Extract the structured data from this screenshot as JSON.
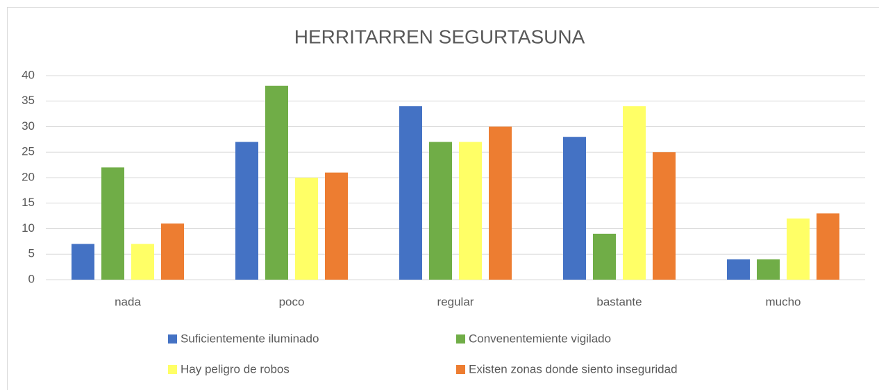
{
  "chart_data": {
    "type": "bar",
    "title": "HERRITARREN SEGURTASUNA",
    "categories": [
      "nada",
      "poco",
      "regular",
      "bastante",
      "mucho"
    ],
    "series": [
      {
        "name": "Suficientemente iluminado",
        "color": "#4472c4",
        "values": [
          7,
          27,
          34,
          28,
          4
        ]
      },
      {
        "name": "Convenentemiente vigilado",
        "color": "#70ad47",
        "values": [
          22,
          38,
          27,
          9,
          4
        ]
      },
      {
        "name": "Hay peligro de robos",
        "color": "#ffff66",
        "values": [
          7,
          20,
          27,
          34,
          12
        ]
      },
      {
        "name": "Existen zonas donde siento inseguridad",
        "color": "#ed7d31",
        "values": [
          11,
          21,
          30,
          25,
          13
        ]
      }
    ],
    "ylim": [
      0,
      40
    ],
    "yticks": [
      0,
      5,
      10,
      15,
      20,
      25,
      30,
      35,
      40
    ],
    "grid": true,
    "legend": "bottom"
  }
}
